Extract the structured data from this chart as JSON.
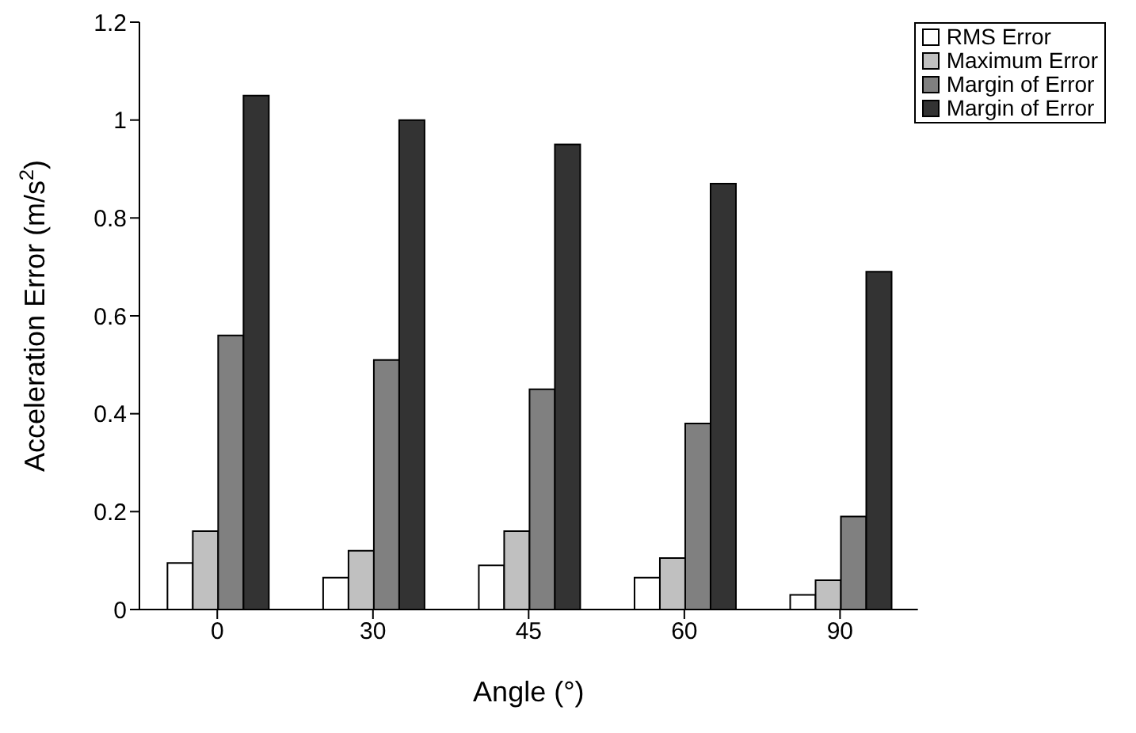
{
  "chart_data": {
    "type": "bar",
    "xlabel": "Angle (°)",
    "ylabel": "Acceleration Error (m/s$^{2}$)",
    "categories": [
      "0",
      "30",
      "45",
      "60",
      "90"
    ],
    "series": [
      {
        "name": "RMS Error",
        "color": "#ffffff",
        "values": [
          0.095,
          0.065,
          0.09,
          0.065,
          0.03
        ]
      },
      {
        "name": "Maximum Error",
        "color": "#c0c0c0",
        "values": [
          0.16,
          0.12,
          0.16,
          0.105,
          0.06
        ]
      },
      {
        "name": "Margin of Error",
        "color": "#808080",
        "values": [
          0.56,
          0.51,
          0.45,
          0.38,
          0.19
        ]
      },
      {
        "name": "Margin of Error",
        "color": "#333333",
        "values": [
          1.05,
          1.0,
          0.95,
          0.87,
          0.69
        ]
      }
    ],
    "ylim": [
      0,
      1.2
    ],
    "yticks": [
      0,
      0.2,
      0.4,
      0.6,
      0.8,
      1,
      1.2
    ],
    "grid": false,
    "legend": "top right"
  }
}
